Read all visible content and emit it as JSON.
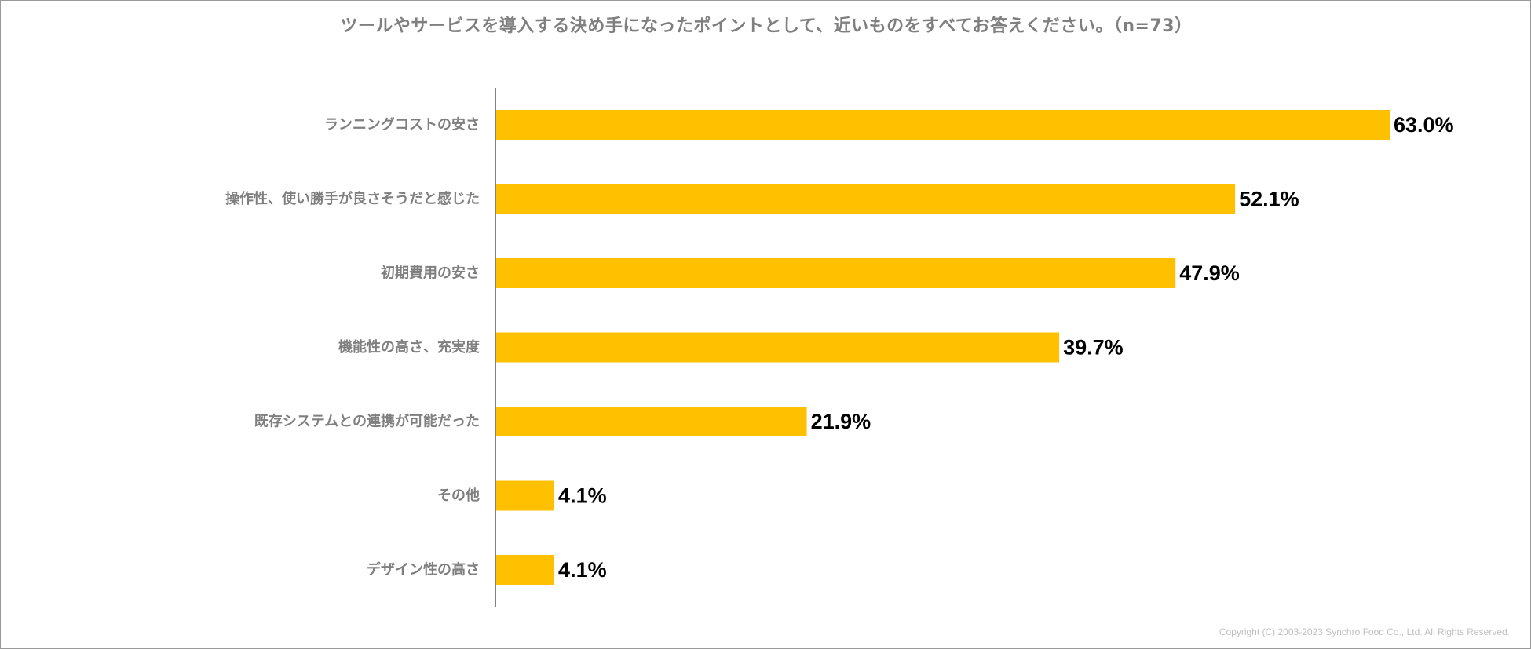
{
  "chart_data": {
    "type": "bar",
    "orientation": "horizontal",
    "title": "ツールやサービスを導入する決め手になったポイントとして、近いものをすべてお答えください。（n=73）",
    "categories": [
      "ランニングコストの安さ",
      "操作性、使い勝手が良さそうだと感じた",
      "初期費用の安さ",
      "機能性の高さ、充実度",
      "既存システムとの連携が可能だった",
      "その他",
      "デザイン性の高さ"
    ],
    "values": [
      63.0,
      52.1,
      47.9,
      39.7,
      21.9,
      4.1,
      4.1
    ],
    "value_labels": [
      "63.0%",
      "52.1%",
      "47.9%",
      "39.7%",
      "21.9%",
      "4.1%",
      "4.1%"
    ],
    "unit": "%",
    "xlim": [
      0,
      100
    ],
    "grid": false,
    "legend": "none",
    "bar_color": "#FFC000"
  },
  "footer": {
    "copyright": "Copyright (C) 2003-2023   Synchro Food Co., Ltd. All Rights Reserved."
  }
}
